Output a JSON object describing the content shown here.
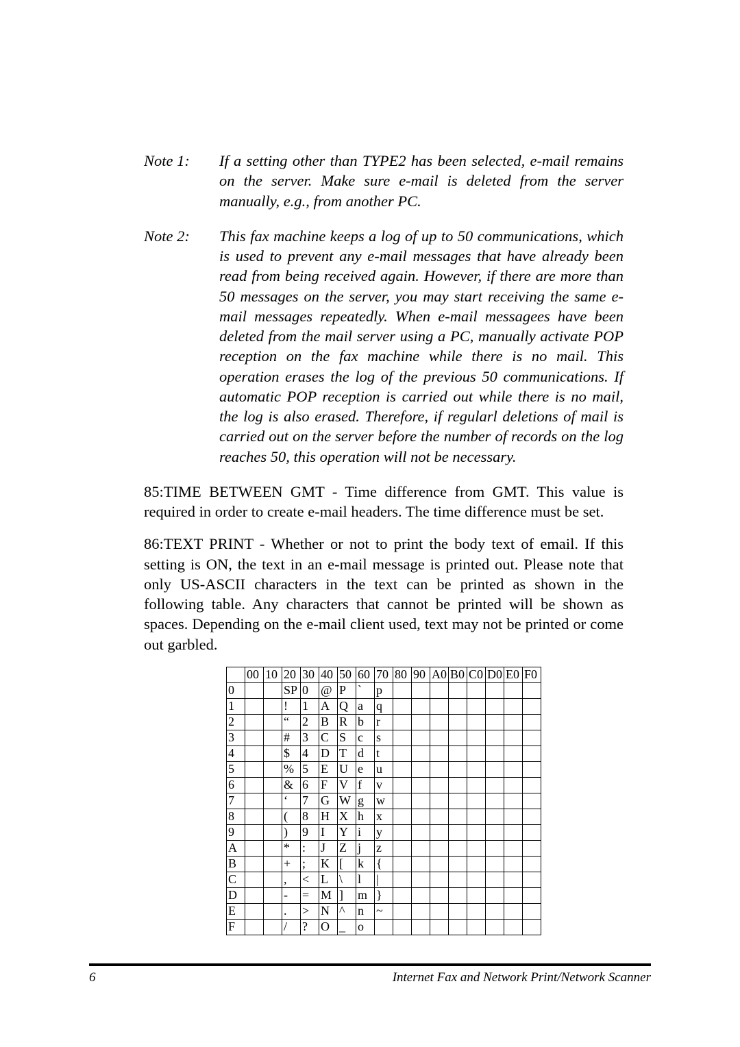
{
  "notes": [
    {
      "label": "Note 1:",
      "text": "If a setting other than TYPE2 has been selected, e-mail remains on the server. Make sure e-mail is deleted from the server manually, e.g., from another PC."
    },
    {
      "label": "Note 2:",
      "text": "This fax machine keeps a log of up to 50 communications, which is used to prevent any e-mail messages that have already been read from being received again. However, if there are more than 50 messages on the server, you may start receiving the same e-mail messages repeatedly. When e-mail messagees have been deleted from the mail server using a PC, manually activate POP reception on the fax machine while there is no mail. This operation erases the log of the previous 50 communications. If automatic POP reception is carried out while there is no mail, the log is also erased. Therefore, if regularl deletions of mail is carried out on the server before the number of records on the log reaches 50, this operation will not be necessary."
    }
  ],
  "paragraphs": [
    "85:TIME BETWEEN GMT - Time difference from GMT. This value is required in order to create e-mail headers. The time difference must be set.",
    "86:TEXT PRINT - Whether or not to print the body text of email. If this setting is ON, the text in an e-mail message is printed out. Please note that only US-ASCII characters in the text can be printed as shown in the following table. Any characters that cannot be printed will be shown as spaces. Depending on the e-mail client used, text may not be printed or come out garbled."
  ],
  "ascii_table": {
    "col_headers": [
      "",
      "00",
      "10",
      "20",
      "30",
      "40",
      "50",
      "60",
      "70",
      "80",
      "90",
      "A0",
      "B0",
      "C0",
      "D0",
      "E0",
      "F0"
    ],
    "rows": [
      [
        "0",
        "",
        "",
        "SP",
        "0",
        "@",
        "P",
        "`",
        "p",
        "",
        "",
        "",
        "",
        "",
        "",
        "",
        ""
      ],
      [
        "1",
        "",
        "",
        "!",
        "1",
        "A",
        "Q",
        "a",
        "q",
        "",
        "",
        "",
        "",
        "",
        "",
        "",
        ""
      ],
      [
        "2",
        "",
        "",
        "“",
        "2",
        "B",
        "R",
        "b",
        "r",
        "",
        "",
        "",
        "",
        "",
        "",
        "",
        ""
      ],
      [
        "3",
        "",
        "",
        "#",
        "3",
        "C",
        "S",
        "c",
        "s",
        "",
        "",
        "",
        "",
        "",
        "",
        "",
        ""
      ],
      [
        "4",
        "",
        "",
        "$",
        "4",
        "D",
        "T",
        "d",
        "t",
        "",
        "",
        "",
        "",
        "",
        "",
        "",
        ""
      ],
      [
        "5",
        "",
        "",
        "%",
        "5",
        "E",
        "U",
        "e",
        "u",
        "",
        "",
        "",
        "",
        "",
        "",
        "",
        ""
      ],
      [
        "6",
        "",
        "",
        "&",
        "6",
        "F",
        "V",
        "f",
        "v",
        "",
        "",
        "",
        "",
        "",
        "",
        "",
        ""
      ],
      [
        "7",
        "",
        "",
        "‘",
        "7",
        "G",
        "W",
        "g",
        "w",
        "",
        "",
        "",
        "",
        "",
        "",
        "",
        ""
      ],
      [
        "8",
        "",
        "",
        "(",
        "8",
        "H",
        "X",
        "h",
        "x",
        "",
        "",
        "",
        "",
        "",
        "",
        "",
        ""
      ],
      [
        "9",
        "",
        "",
        ")",
        "9",
        "I",
        "Y",
        "i",
        "y",
        "",
        "",
        "",
        "",
        "",
        "",
        "",
        ""
      ],
      [
        "A",
        "",
        "",
        "*",
        ":",
        "J",
        "Z",
        "j",
        "z",
        "",
        "",
        "",
        "",
        "",
        "",
        "",
        ""
      ],
      [
        "B",
        "",
        "",
        "+",
        ";",
        "K",
        "[",
        "k",
        "{",
        "",
        "",
        "",
        "",
        "",
        "",
        "",
        ""
      ],
      [
        "C",
        "",
        "",
        ",",
        "<",
        "L",
        "\\",
        "l",
        "|",
        "",
        "",
        "",
        "",
        "",
        "",
        "",
        ""
      ],
      [
        "D",
        "",
        "",
        "-",
        "=",
        "M",
        "]",
        "m",
        "}",
        "",
        "",
        "",
        "",
        "",
        "",
        "",
        ""
      ],
      [
        "E",
        "",
        "",
        ".",
        ">",
        "N",
        "^",
        "n",
        "~",
        "",
        "",
        "",
        "",
        "",
        "",
        "",
        ""
      ],
      [
        "F",
        "",
        "",
        "/",
        "?",
        "O",
        "_",
        "o",
        "",
        "",
        "",
        "",
        "",
        "",
        "",
        "",
        ""
      ]
    ]
  },
  "footer": {
    "page_number": "6",
    "title": "Internet Fax and Network Print/Network Scanner"
  }
}
